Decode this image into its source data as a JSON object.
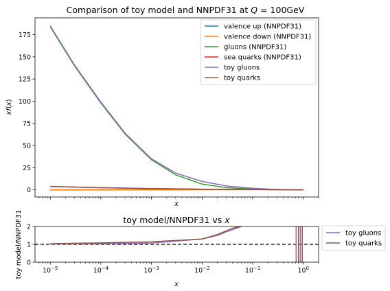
{
  "chart_data": [
    {
      "type": "line",
      "title": "Comparison of toy model and NNPDF31 at ",
      "title_math": "Q",
      "title_suffix": " = 100GeV",
      "xlabel": "x",
      "ylabel": "xf(x)",
      "xscale": "log",
      "xlim": [
        5e-06,
        2
      ],
      "ylim": [
        -8,
        194
      ],
      "yticks": [
        0,
        25,
        50,
        75,
        100,
        125,
        150,
        175
      ],
      "xticks": [
        1e-05,
        0.0001,
        0.001,
        0.01,
        0.1,
        1
      ],
      "legend": "top-right",
      "series": [
        {
          "name": "valence up (NNPDF31)",
          "color": "#1f77b4",
          "x": [
            1e-05,
            0.0001,
            0.001,
            0.01,
            0.1,
            0.3,
            0.6,
            1
          ],
          "y": [
            0.05,
            0.1,
            0.18,
            0.3,
            0.55,
            0.45,
            0.15,
            0
          ]
        },
        {
          "name": "valence down (NNPDF31)",
          "color": "#ff7f0e",
          "x": [
            1e-05,
            0.0001,
            0.001,
            0.01,
            0.1,
            0.3,
            0.6,
            1
          ],
          "y": [
            0.03,
            0.06,
            0.1,
            0.18,
            0.25,
            0.18,
            0.05,
            0
          ]
        },
        {
          "name": "gluons (NNPDF31)",
          "color": "#2ca02c",
          "x": [
            1e-05,
            3e-05,
            0.0001,
            0.0003,
            0.001,
            0.003,
            0.01,
            0.03,
            0.1,
            0.3,
            1
          ],
          "y": [
            184,
            140,
            98,
            63,
            34,
            17,
            6.5,
            2.5,
            0.9,
            0.3,
            0
          ]
        },
        {
          "name": "sea quarks (NNPDF31)",
          "color": "#d62728",
          "x": [
            1e-05,
            0.0001,
            0.001,
            0.01,
            0.1,
            1
          ],
          "y": [
            3.8,
            2.4,
            1.4,
            0.7,
            0.3,
            0
          ]
        },
        {
          "name": "toy gluons",
          "color": "#9467bd",
          "x": [
            1e-05,
            3e-05,
            0.0001,
            0.0003,
            0.001,
            0.003,
            0.01,
            0.03,
            0.1,
            0.3,
            1
          ],
          "y": [
            185,
            141,
            99,
            64,
            35,
            19,
            9.5,
            4.5,
            1.8,
            0.5,
            0
          ]
        },
        {
          "name": "toy quarks",
          "color": "#8c564b",
          "x": [
            1e-05,
            0.0001,
            0.001,
            0.01,
            0.1,
            1
          ],
          "y": [
            3.9,
            2.5,
            1.5,
            0.8,
            0.35,
            0
          ]
        }
      ]
    },
    {
      "type": "line",
      "title": "toy model/NNPDF31 vs ",
      "title_math": "x",
      "xlabel": "x",
      "ylabel": "toy model/NNPDF31",
      "xscale": "log",
      "xlim": [
        5e-06,
        2
      ],
      "ylim": [
        0,
        2
      ],
      "yticks": [
        0,
        1,
        2
      ],
      "xticks": [
        1e-05,
        0.0001,
        0.001,
        0.01,
        0.1,
        1
      ],
      "xtick_labels": [
        {
          "base": "10",
          "exp": "−5"
        },
        {
          "base": "10",
          "exp": "−4"
        },
        {
          "base": "10",
          "exp": "−3"
        },
        {
          "base": "10",
          "exp": "−2"
        },
        {
          "base": "10",
          "exp": "−1"
        },
        {
          "base": "10",
          "exp": "0"
        }
      ],
      "reference_line": 1,
      "legend": "outside-right",
      "series": [
        {
          "name": "toy gluons",
          "color": "#9467bd",
          "x": [
            1e-05,
            0.0001,
            0.001,
            0.01,
            0.02,
            0.03,
            0.045,
            0.06
          ],
          "y": [
            1.02,
            1.03,
            1.07,
            1.3,
            1.5,
            1.7,
            1.88,
            2.0
          ],
          "spikes_x": [
            0.72,
            0.87
          ]
        },
        {
          "name": "toy quarks",
          "color": "#8c564b",
          "x": [
            1e-05,
            0.0001,
            0.001,
            0.01,
            0.02,
            0.03,
            0.04,
            0.055
          ],
          "y": [
            1.04,
            1.08,
            1.14,
            1.3,
            1.55,
            1.75,
            1.9,
            2.0
          ],
          "spikes_x": [
            0.8,
            0.95
          ]
        }
      ]
    }
  ]
}
